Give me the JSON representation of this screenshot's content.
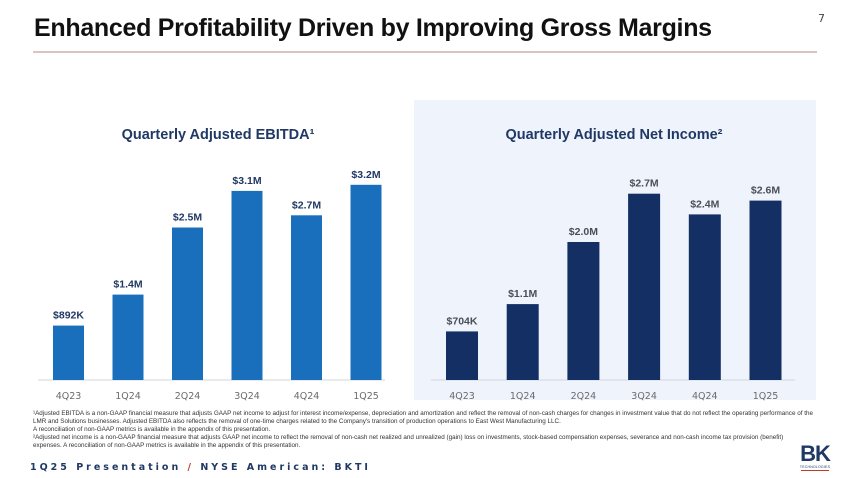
{
  "slide": {
    "title": "Enhanced Profitability Driven by Improving Gross Margins",
    "page_number": "7",
    "footer_left": "1Q25 Presentation",
    "footer_separator": "/",
    "footer_right": "NYSE American: BKTI",
    "logo_text": "BK",
    "logo_subtext": "TECHNOLOGIES"
  },
  "footnotes": [
    "¹Adjusted EBITDA is a non-GAAP financial measure that adjusts GAAP net income to adjust for interest income/expense, depreciation and amortization and reflect the removal of non-cash charges for changes in investment value that do not reflect the operating performance of the LMR and Solutions businesses. Adjusted EBITDA also reflects the removal of one-time charges related to the Company's transition of production operations to East West Manufacturing LLC.",
    "A reconciliation of non-GAAP metrics is available in the appendix of this presentation.",
    "²Adjusted net income is a non-GAAP financial measure that adjusts GAAP net income to reflect the removal of non-cash net realized and unrealized (gain) loss on investments, stock-based compensation expenses, severance and non-cash income tax provision (benefit) expenses. A reconciliation of non-GAAP metrics is available in the appendix of this presentation."
  ],
  "colors": {
    "ebitda_bar": "#1a6fbd",
    "net_income_bar": "#132f63",
    "title_navy": "#1f3864",
    "right_panel_bg": "#eff3fb",
    "footer_accent": "#c0392b"
  },
  "chart_data": [
    {
      "type": "bar",
      "title": "Quarterly Adjusted EBITDA¹",
      "xlabel": "",
      "ylabel": "",
      "categories": [
        "4Q23",
        "1Q24",
        "2Q24",
        "3Q24",
        "4Q24",
        "1Q25"
      ],
      "values": [
        0.892,
        1.4,
        2.5,
        3.1,
        2.7,
        3.2
      ],
      "units": "USD millions",
      "data_labels": [
        "$892K",
        "$1.4M",
        "$2.5M",
        "$3.1M",
        "$2.7M",
        "$3.2M"
      ],
      "ylim": [
        0,
        3.5
      ],
      "grid": false,
      "legend": "none"
    },
    {
      "type": "bar",
      "title": "Quarterly Adjusted Net Income²",
      "xlabel": "",
      "ylabel": "",
      "categories": [
        "4Q23",
        "1Q24",
        "2Q24",
        "3Q24",
        "4Q24",
        "1Q25"
      ],
      "values": [
        0.704,
        1.1,
        2.0,
        2.7,
        2.4,
        2.6
      ],
      "units": "USD millions",
      "data_labels": [
        "$704K",
        "$1.1M",
        "$2.0M",
        "$2.7M",
        "$2.4M",
        "$2.6M"
      ],
      "ylim": [
        0,
        3.0
      ],
      "grid": false,
      "legend": "none"
    }
  ]
}
